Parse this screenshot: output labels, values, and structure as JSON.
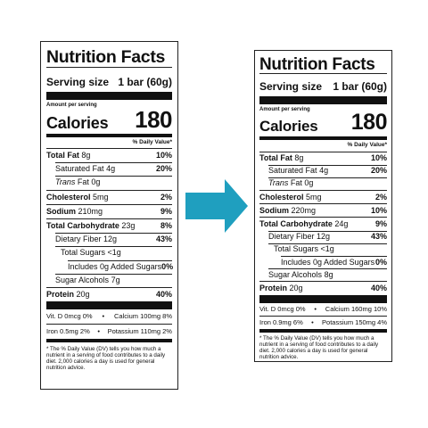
{
  "left": {
    "title": "Nutrition Facts",
    "serving_label": "Serving size",
    "serving_value": "1 bar (60g)",
    "amount_per_serving": "Amount per serving",
    "calories_label": "Calories",
    "calories_value": "180",
    "dv_header": "% Daily Value*",
    "rows": [
      {
        "bold": "Total Fat",
        "amount": "8g",
        "pct": "10%"
      },
      {
        "name": "Saturated Fat",
        "amount": "4g",
        "pct": "20%"
      },
      {
        "italic": "Trans",
        "name": "Fat",
        "amount": "0g",
        "pct": ""
      },
      {
        "bold": "Cholesterol",
        "amount": "5mg",
        "pct": "2%"
      },
      {
        "bold": "Sodium",
        "amount": "210mg",
        "pct": "9%"
      },
      {
        "bold": "Total Carbohydrate",
        "amount": "23g",
        "pct": "8%"
      },
      {
        "name": "Dietary Fiber",
        "amount": "12g",
        "pct": "43%"
      },
      {
        "name": "Total Sugars",
        "amount": "<1g",
        "pct": ""
      },
      {
        "name": "Includes",
        "amount": "0g Added Sugars",
        "pct": "0%"
      },
      {
        "name": "Sugar Alcohols",
        "amount": "7g",
        "pct": ""
      },
      {
        "bold": "Protein",
        "amount": "20g",
        "pct": "40%"
      }
    ],
    "vit_line1_a": "Vit. D 0mcg 0%",
    "vit_line1_b": "Calcium 100mg 8%",
    "vit_line2_a": "Iron 0.5mg 2%",
    "vit_line2_b": "Potassium 110mg 2%",
    "footnote": "* The % Daily Value (DV) tells you how much a nutrient in a serving of food contributes to a daily diet. 2,000 calories a day is used for general nutrition advice."
  },
  "right": {
    "title": "Nutrition Facts",
    "serving_label": "Serving size",
    "serving_value": "1 bar (60g)",
    "amount_per_serving": "Amount per serving",
    "calories_label": "Calories",
    "calories_value": "180",
    "dv_header": "% Daily Value*",
    "rows": [
      {
        "bold": "Total Fat",
        "amount": "8g",
        "pct": "10%"
      },
      {
        "name": "Saturated Fat",
        "amount": "4g",
        "pct": "20%"
      },
      {
        "italic": "Trans",
        "name": "Fat",
        "amount": "0g",
        "pct": ""
      },
      {
        "bold": "Cholesterol",
        "amount": "5mg",
        "pct": "2%"
      },
      {
        "bold": "Sodium",
        "amount": "220mg",
        "pct": "10%"
      },
      {
        "bold": "Total Carbohydrate",
        "amount": "24g",
        "pct": "9%"
      },
      {
        "name": "Dietary Fiber",
        "amount": "12g",
        "pct": "43%"
      },
      {
        "name": "Total Sugars",
        "amount": "<1g",
        "pct": ""
      },
      {
        "name": "Includes",
        "amount": "0g Added Sugars",
        "pct": "0%"
      },
      {
        "name": "Sugar Alcohols",
        "amount": "8g",
        "pct": ""
      },
      {
        "bold": "Protein",
        "amount": "20g",
        "pct": "40%"
      }
    ],
    "vit_line1_a": "Vit. D 0mcg 0%",
    "vit_line1_b": "Calcium 160mg 10%",
    "vit_line2_a": "Iron 0.9mg 6%",
    "vit_line2_b": "Potassium 150mg 4%",
    "footnote": "* The % Daily Value (DV) tells you how much a nutrient in a serving of food contributes to a daily diet. 2,000 calories a day is used for general nutrition advice."
  },
  "arrow": {
    "icon": "arrow-right-icon",
    "color": "#1f9fbf"
  }
}
